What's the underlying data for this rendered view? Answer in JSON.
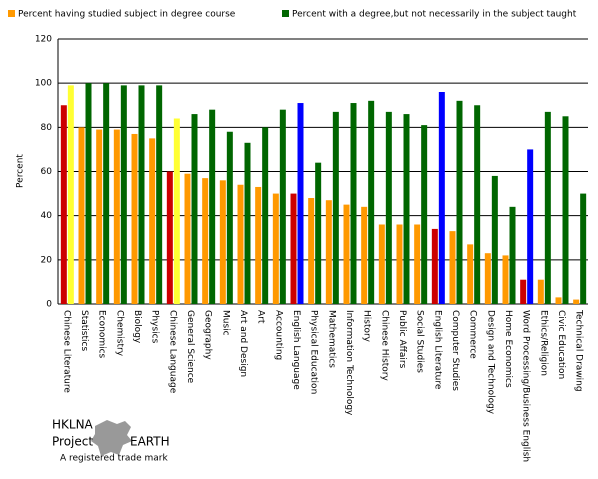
{
  "chart_data": {
    "type": "bar",
    "y_label": "Percent",
    "categories": [
      "Chinese Literature",
      "Statistics",
      "Economics",
      "Chemistry",
      "Biology",
      "Physics",
      "Chinese Language",
      "General Science",
      "Geography",
      "Music",
      "Art and Design",
      "Art",
      "Accounting",
      "English Language",
      "Physical Education",
      "Mathematics",
      "Information Technology",
      "History",
      "Chinese History",
      "Public Affairs",
      "Social Studies",
      "English Literature",
      "Computer Studies",
      "Commerce",
      "Design and Technology",
      "Home Economics",
      "Word Processing/Business English",
      "Ethics/Religion",
      "Civic Education",
      "Technical Drawing"
    ],
    "series": [
      {
        "name": "Percent having studied subject in degree course",
        "color": "#ff9900",
        "colors": [
          "#cc0000",
          "#ff9900",
          "#ff9900",
          "#ff9900",
          "#ff9900",
          "#ff9900",
          "#cc0000",
          "#ff9900",
          "#ff9900",
          "#ff9900",
          "#ff9900",
          "#ff9900",
          "#ff9900",
          "#cc0000",
          "#ff9900",
          "#ff9900",
          "#ff9900",
          "#ff9900",
          "#ff9900",
          "#ff9900",
          "#ff9900",
          "#cc0000",
          "#ff9900",
          "#ff9900",
          "#ff9900",
          "#ff9900",
          "#cc0000",
          "#ff9900",
          "#ff9900",
          "#ff9900"
        ],
        "values": [
          90,
          80,
          79,
          79,
          77,
          75,
          60,
          59,
          57,
          56,
          54,
          53,
          50,
          50,
          48,
          47,
          45,
          44,
          36,
          36,
          36,
          34,
          33,
          27,
          23,
          22,
          11,
          11,
          3,
          2
        ]
      },
      {
        "name": "Percent with a degree,but not necessarily in the subject taught",
        "color": "#006600",
        "colors": [
          "#ffff33",
          "#006600",
          "#006600",
          "#006600",
          "#006600",
          "#006600",
          "#ffff33",
          "#006600",
          "#006600",
          "#006600",
          "#006600",
          "#006600",
          "#006600",
          "#0000ff",
          "#006600",
          "#006600",
          "#006600",
          "#006600",
          "#006600",
          "#006600",
          "#006600",
          "#0000ff",
          "#006600",
          "#006600",
          "#006600",
          "#006600",
          "#0000ff",
          "#006600",
          "#006600",
          "#006600"
        ],
        "values": [
          99,
          100,
          100,
          99,
          99,
          99,
          84,
          86,
          88,
          78,
          73,
          80,
          88,
          91,
          64,
          87,
          91,
          92,
          87,
          86,
          81,
          96,
          92,
          90,
          58,
          44,
          70,
          87,
          85,
          50
        ]
      }
    ],
    "ylim": [
      0,
      120
    ],
    "yticks": [
      0,
      20,
      40,
      60,
      80,
      100,
      120
    ],
    "grid": true
  },
  "logo": {
    "line1": "HKLNA",
    "line2a": "Project",
    "line2b": "EARTH",
    "tagline": "A registered trade mark"
  }
}
